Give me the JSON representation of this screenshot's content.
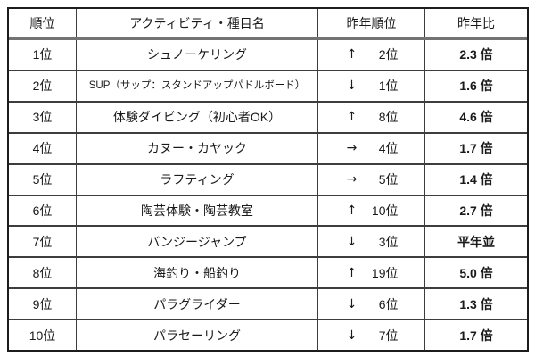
{
  "table": {
    "headers": [
      "順位",
      "アクティビティ・種目名",
      "昨年順位",
      "昨年比"
    ],
    "rows": [
      {
        "rank": "1位",
        "activity": "シュノーケリング",
        "arrow": "↑",
        "prev_rank": "2位",
        "ratio": "2.3 倍"
      },
      {
        "rank": "2位",
        "activity": "SUP（サップ：スタンドアップパドルボード）",
        "arrow": "↓",
        "prev_rank": "1位",
        "ratio": "1.6 倍"
      },
      {
        "rank": "3位",
        "activity": "体験ダイビング（初心者OK）",
        "arrow": "↑",
        "prev_rank": "8位",
        "ratio": "4.6 倍"
      },
      {
        "rank": "4位",
        "activity": "カヌー・カヤック",
        "arrow": "→",
        "prev_rank": "4位",
        "ratio": "1.7 倍"
      },
      {
        "rank": "5位",
        "activity": "ラフティング",
        "arrow": "→",
        "prev_rank": "5位",
        "ratio": "1.4 倍"
      },
      {
        "rank": "6位",
        "activity": "陶芸体験・陶芸教室",
        "arrow": "↑",
        "prev_rank": "10位",
        "ratio": "2.7 倍"
      },
      {
        "rank": "7位",
        "activity": "バンジージャンプ",
        "arrow": "↓",
        "prev_rank": "3位",
        "ratio": "平年並"
      },
      {
        "rank": "8位",
        "activity": "海釣り・船釣り",
        "arrow": "↑",
        "prev_rank": "19位",
        "ratio": "5.0 倍"
      },
      {
        "rank": "9位",
        "activity": "パラグライダー",
        "arrow": "↓",
        "prev_rank": "6位",
        "ratio": "1.3 倍"
      },
      {
        "rank": "10位",
        "activity": "パラセーリング",
        "arrow": "↓",
        "prev_rank": "7位",
        "ratio": "1.7 倍"
      }
    ]
  },
  "colors": {
    "background": "#ffffff",
    "text": "#1a1a1a",
    "outer_border": "#1c1c1c",
    "inner_border": "#3d3d3d",
    "header_separator": "#737373"
  }
}
